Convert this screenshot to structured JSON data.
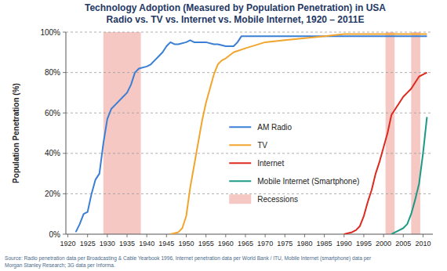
{
  "chart_data": {
    "type": "line",
    "title": "Technology Adoption (Measured by Population Penetration) in USA",
    "subtitle": "Radio vs. TV vs. Internet vs. Mobile Internet, 1920 – 2011E",
    "y_label": "Population Penetration (%)",
    "xlim": [
      1919.5,
      2012.5
    ],
    "xticks": [
      1920,
      1925,
      1930,
      1935,
      1940,
      1945,
      1950,
      1955,
      1960,
      1965,
      1970,
      1975,
      1980,
      1985,
      1990,
      1995,
      2000,
      2005,
      2010
    ],
    "ylim": [
      0,
      100
    ],
    "yticks": [
      {
        "value": 0,
        "label": "0%"
      },
      {
        "value": 20,
        "label": "20%"
      },
      {
        "value": 40,
        "label": "40%"
      },
      {
        "value": 60,
        "label": "60%"
      },
      {
        "value": 80,
        "label": "80%"
      },
      {
        "value": 100,
        "label": "100%"
      }
    ],
    "grid": true,
    "legend": "center",
    "series": [
      {
        "name": "AM Radio",
        "color": "#3a7fd5",
        "x": [
          1922,
          1923,
          1924,
          1925,
          1926,
          1927,
          1928,
          1929,
          1930,
          1931,
          1932,
          1934,
          1935,
          1936,
          1937,
          1938,
          1940,
          1941,
          1942,
          1943,
          1944,
          1945,
          1946,
          1947,
          1948,
          1950,
          1951,
          1952,
          1955,
          1957,
          1958,
          1960,
          1962,
          1963,
          1964,
          1965,
          1970,
          1980,
          1990,
          2000,
          2011
        ],
        "values": [
          1,
          5,
          10,
          11,
          20,
          27,
          30,
          45,
          57,
          62,
          64,
          68,
          70,
          74,
          80,
          82,
          83,
          84,
          86,
          88,
          90,
          93,
          95,
          94,
          94,
          95,
          96,
          95,
          95,
          94,
          94,
          93,
          93,
          95,
          98,
          98,
          98,
          98,
          98,
          98,
          98
        ]
      },
      {
        "name": "TV",
        "color": "#f2a52c",
        "x": [
          1946,
          1947,
          1948,
          1949,
          1950,
          1951,
          1952,
          1953,
          1954,
          1955,
          1956,
          1957,
          1958,
          1959,
          1960,
          1962,
          1965,
          1970,
          1975,
          1980,
          1985,
          1990,
          2000,
          2011
        ],
        "values": [
          0,
          0.5,
          1,
          3,
          9,
          23,
          34,
          45,
          56,
          65,
          72,
          79,
          84,
          86,
          87,
          90,
          92,
          95,
          96,
          97,
          98,
          99,
          99,
          99
        ]
      },
      {
        "name": "Internet",
        "color": "#dc2a1f",
        "x": [
          1990,
          1992,
          1993,
          1994,
          1995,
          1996,
          1997,
          1998,
          1999,
          2000,
          2001,
          2002,
          2003,
          2004,
          2005,
          2006,
          2007,
          2008,
          2009,
          2010,
          2011
        ],
        "values": [
          0,
          1,
          2,
          4,
          9,
          16,
          22,
          30,
          36,
          43,
          50,
          59,
          62,
          65,
          68,
          70,
          72,
          75,
          78,
          79,
          80
        ]
      },
      {
        "name": "Mobile Internet (Smartphone)",
        "color": "#1c9a86",
        "x": [
          2002,
          2003,
          2004,
          2005,
          2006,
          2007,
          2008,
          2009,
          2010,
          2011
        ],
        "values": [
          0,
          1,
          2,
          3,
          5,
          10,
          17,
          25,
          40,
          58
        ]
      }
    ],
    "recessions": {
      "name": "Recessions",
      "color": "#f5c8c3",
      "ranges": [
        [
          1929,
          1938.5
        ],
        [
          2000.5,
          2002.8
        ],
        [
          2007,
          2009.3
        ]
      ]
    },
    "source": [
      "Source: Radio penetration data per Broadcasting & Cable Yearbook 1996, Internet penetration data per World Bank / ITU, Mobile Internet (smartphone) data per",
      "Morgan Stanley Research; 3G data per Informa."
    ]
  }
}
